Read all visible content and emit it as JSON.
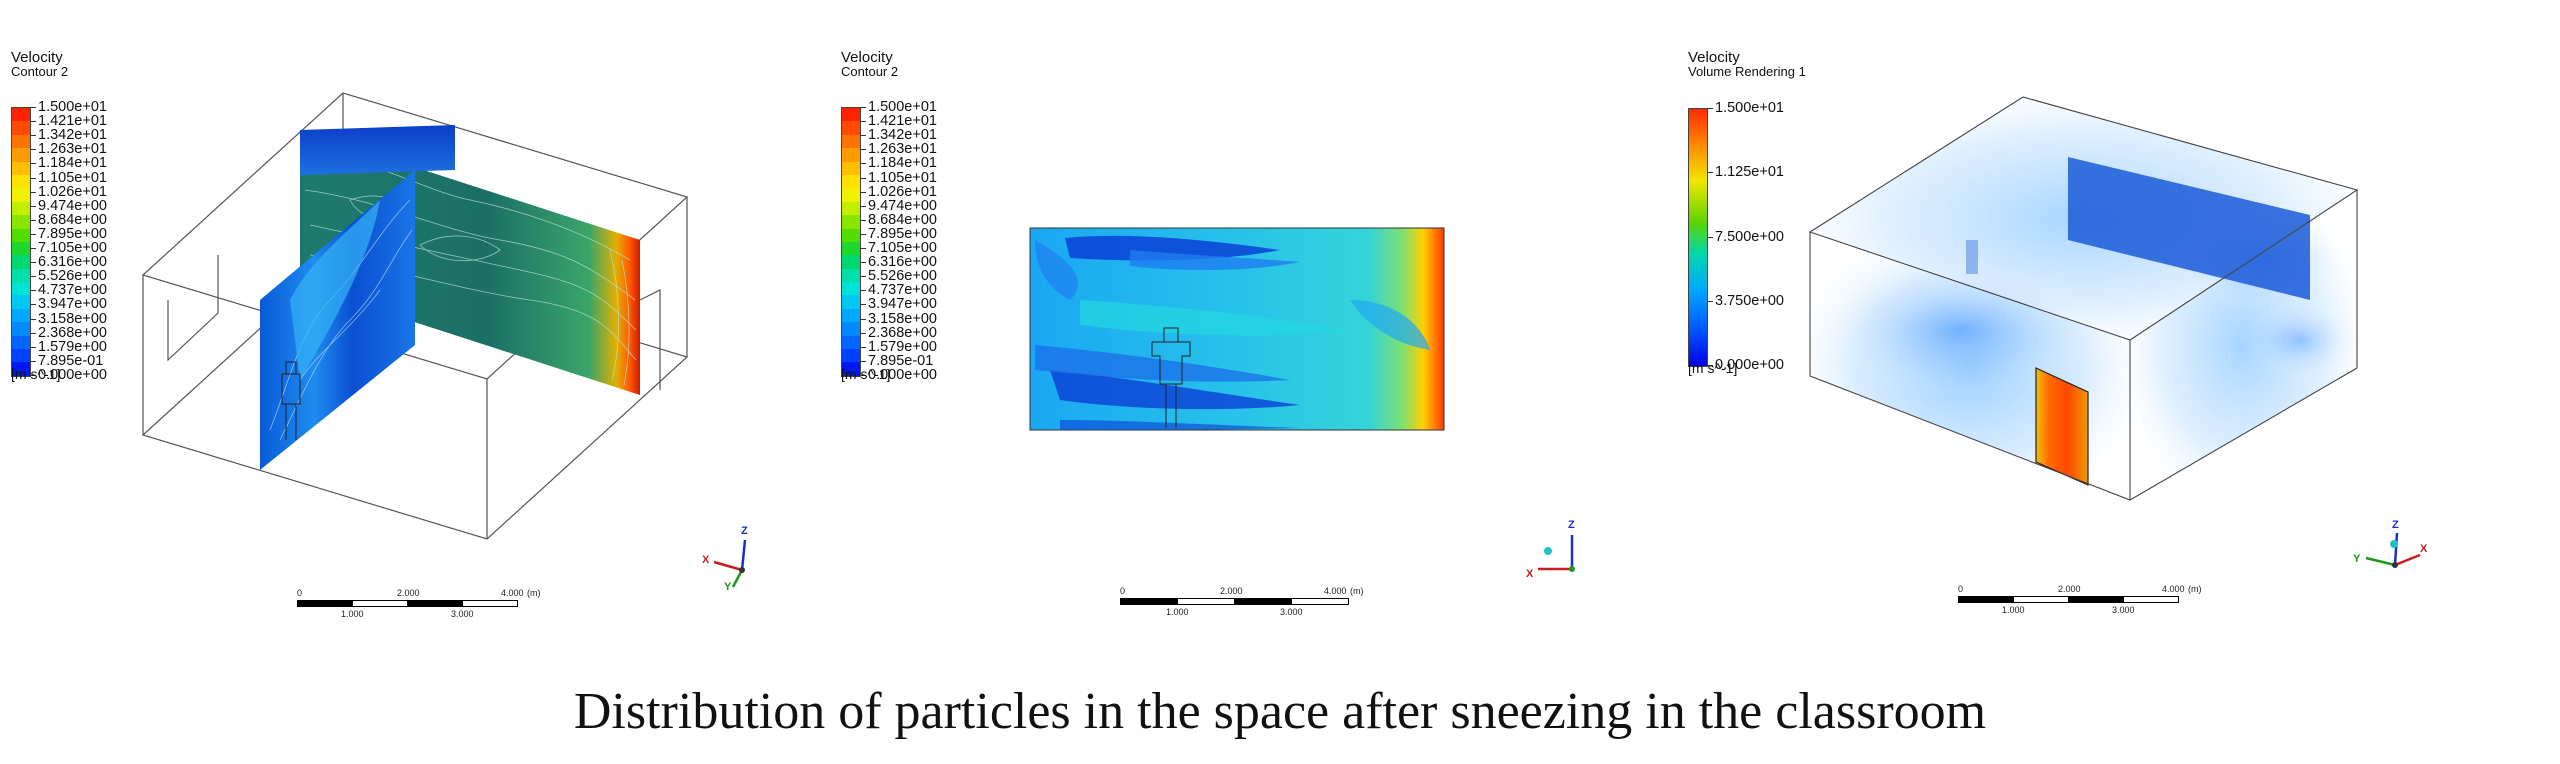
{
  "panels": [
    {
      "legend": {
        "title": "Velocity",
        "subtitle": "Contour 2",
        "units": "[m s^-1]",
        "labels": [
          "1.500e+01",
          "1.421e+01",
          "1.342e+01",
          "1.263e+01",
          "1.184e+01",
          "1.105e+01",
          "1.026e+01",
          "9.474e+00",
          "8.684e+00",
          "7.895e+00",
          "7.105e+00",
          "6.316e+00",
          "5.526e+00",
          "4.737e+00",
          "3.947e+00",
          "3.158e+00",
          "2.368e+00",
          "1.579e+00",
          "7.895e-01",
          "0.000e+00"
        ],
        "colors": [
          "#ff2200",
          "#ff4a00",
          "#ff7300",
          "#ff9a00",
          "#ffbf00",
          "#ffe100",
          "#f0f000",
          "#c2ee00",
          "#8ae500",
          "#52dc00",
          "#1ed82e",
          "#00d76e",
          "#00dfa8",
          "#00e2d6",
          "#00c8f2",
          "#00a8ff",
          "#0088ff",
          "#0066ff",
          "#0040ff",
          "#0018f0"
        ]
      },
      "scale": {
        "ticks_top": [
          "0",
          "2.000",
          "4.000"
        ],
        "ticks_bottom": [
          "1.000",
          "3.000"
        ],
        "unit": "(m)"
      },
      "axes": {
        "z": "Z",
        "x": "X",
        "y": "Y"
      }
    },
    {
      "legend": {
        "title": "Velocity",
        "subtitle": "Contour 2",
        "units": "[m s^-1]",
        "labels": [
          "1.500e+01",
          "1.421e+01",
          "1.342e+01",
          "1.263e+01",
          "1.184e+01",
          "1.105e+01",
          "1.026e+01",
          "9.474e+00",
          "8.684e+00",
          "7.895e+00",
          "7.105e+00",
          "6.316e+00",
          "5.526e+00",
          "4.737e+00",
          "3.947e+00",
          "3.158e+00",
          "2.368e+00",
          "1.579e+00",
          "7.895e-01",
          "0.000e+00"
        ],
        "colors": [
          "#ff2200",
          "#ff4a00",
          "#ff7300",
          "#ff9a00",
          "#ffbf00",
          "#ffe100",
          "#f0f000",
          "#c2ee00",
          "#8ae500",
          "#52dc00",
          "#1ed82e",
          "#00d76e",
          "#00dfa8",
          "#00e2d6",
          "#00c8f2",
          "#00a8ff",
          "#0088ff",
          "#0066ff",
          "#0040ff",
          "#0018f0"
        ]
      },
      "scale": {
        "ticks_top": [
          "0",
          "2.000",
          "4.000"
        ],
        "ticks_bottom": [
          "1.000",
          "3.000"
        ],
        "unit": "(m)"
      },
      "axes": {
        "z": "Z",
        "x": "X"
      }
    },
    {
      "legend": {
        "title": "Velocity",
        "subtitle": "Volume Rendering 1",
        "units": "[m s^-1]",
        "labels": [
          "1.500e+01",
          "1.125e+01",
          "7.500e+00",
          "3.750e+00",
          "0.000e+00"
        ]
      },
      "scale": {
        "ticks_top": [
          "0",
          "2.000",
          "4.000"
        ],
        "ticks_bottom": [
          "1.000",
          "3.000"
        ],
        "unit": "(m)"
      },
      "axes": {
        "z": "Z",
        "x": "X",
        "y": "Y"
      }
    }
  ],
  "caption": "Distribution of particles in the space after sneezing in the classroom"
}
